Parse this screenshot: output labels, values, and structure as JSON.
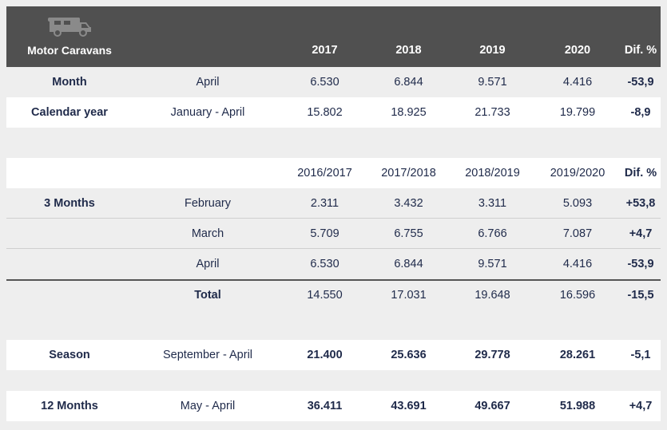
{
  "header": {
    "title": "Motor Caravans",
    "icon": "camper-van-icon",
    "cols": [
      "2017",
      "2018",
      "2019",
      "2020",
      "Dif. %"
    ]
  },
  "top_rows": [
    {
      "label": "Month",
      "period": "April",
      "v": [
        "6.530",
        "6.844",
        "9.571",
        "4.416"
      ],
      "dif": "-53,9"
    },
    {
      "label": "Calendar year",
      "period": "January - April",
      "v": [
        "15.802",
        "18.925",
        "21.733",
        "19.799"
      ],
      "dif": "-8,9"
    }
  ],
  "season_header": {
    "cols": [
      "2016/2017",
      "2017/2018",
      "2018/2019",
      "2019/2020",
      "Dif. %"
    ]
  },
  "months3": {
    "label": "3 Months",
    "rows": [
      {
        "period": "February",
        "v": [
          "2.311",
          "3.432",
          "3.311",
          "5.093"
        ],
        "dif": "+53,8"
      },
      {
        "period": "March",
        "v": [
          "5.709",
          "6.755",
          "6.766",
          "7.087"
        ],
        "dif": "+4,7"
      },
      {
        "period": "April",
        "v": [
          "6.530",
          "6.844",
          "9.571",
          "4.416"
        ],
        "dif": "-53,9"
      }
    ],
    "total": {
      "period": "Total",
      "v": [
        "14.550",
        "17.031",
        "19.648",
        "16.596"
      ],
      "dif": "-15,5"
    }
  },
  "season": {
    "label": "Season",
    "period": "September - April",
    "v": [
      "21.400",
      "25.636",
      "29.778",
      "28.261"
    ],
    "dif": "-5,1"
  },
  "months12": {
    "label": "12 Months",
    "period": "May - April",
    "v": [
      "36.411",
      "43.691",
      "49.667",
      "51.988"
    ],
    "dif": "+4,7"
  },
  "colors": {
    "header_bg": "#505050",
    "text": "#1f2a4a",
    "page_bg": "#eeeeee",
    "row_white": "#ffffff"
  }
}
